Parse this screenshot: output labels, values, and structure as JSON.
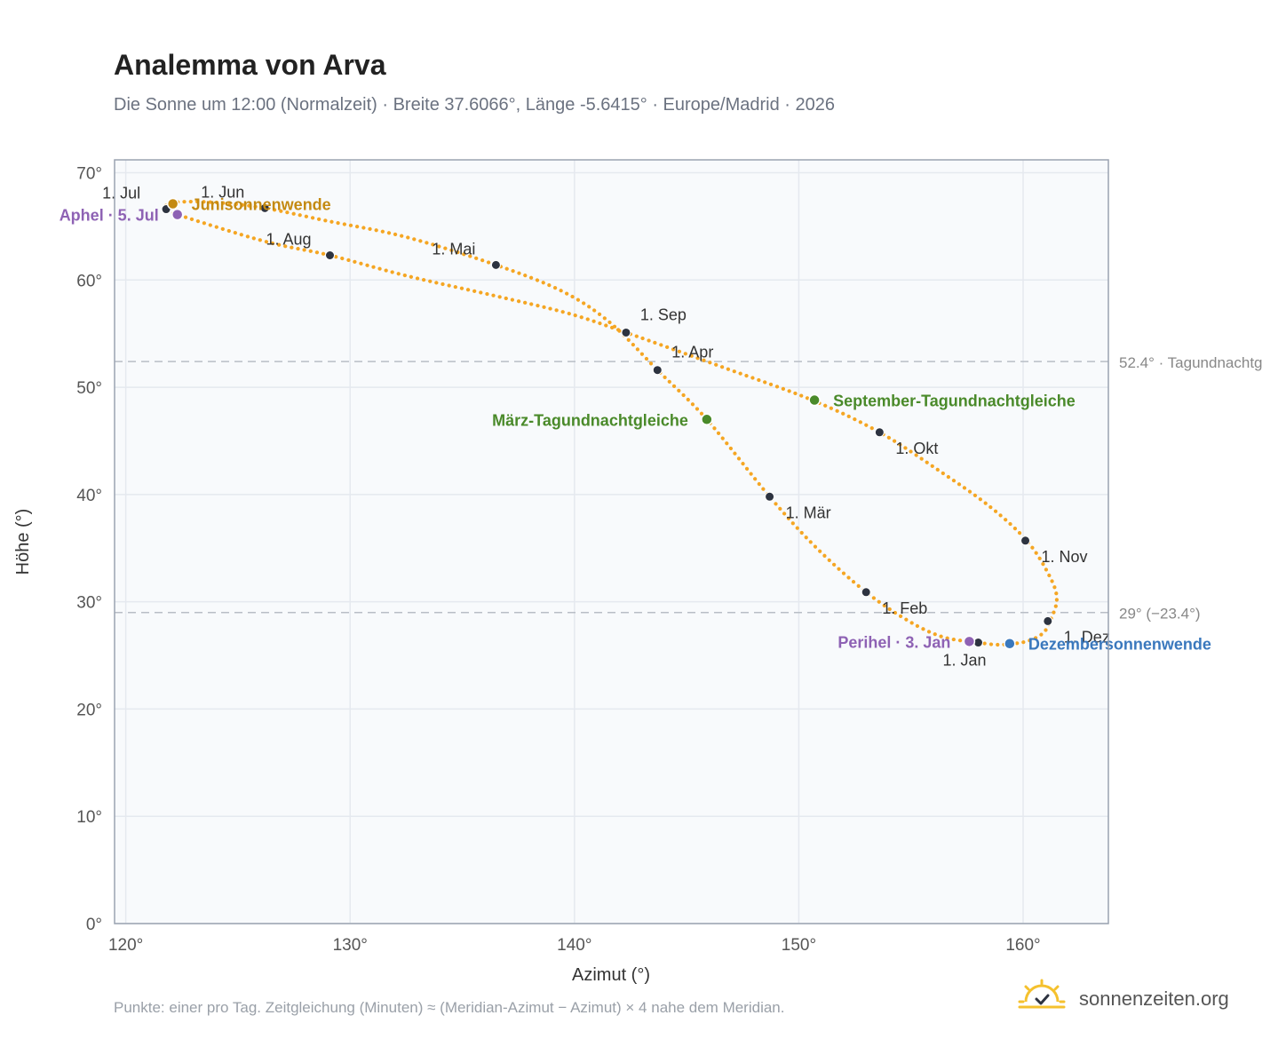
{
  "header": {
    "title": "Analemma von Arva",
    "subtitle": "Die Sonne um 12:00 (Normalzeit) · Breite 37.6066°, Länge -5.6415° · Europe/Madrid · 2026"
  },
  "footer": {
    "note": "Punkte: einer pro Tag. Zeitgleichung (Minuten) ≈ (Meridian-Azimut − Azimut) × 4 nahe dem Meridian.",
    "brand": "sonnenzeiten.org"
  },
  "colors": {
    "curve": "#f5a623",
    "month_dot": "#2d3340",
    "equinox": "#4a8a2a",
    "december_solstice": "#3a78bd",
    "june_solstice": "#c48a12",
    "perihelion_aphelion": "#8e62b4",
    "refline": "#b8bec6",
    "plot_bg": "#f8fafc",
    "grid": "#e5e9ef",
    "frame": "#9aa3b1"
  },
  "icons": {
    "brand_logo": "sun-check-icon"
  },
  "chart_data": {
    "type": "scatter",
    "title": "Analemma von Arva",
    "xlabel": "Azimut (°)",
    "ylabel": "Höhe (°)",
    "xlim": [
      119.5,
      163.8
    ],
    "ylim": [
      0,
      71.2
    ],
    "xticks": [
      120,
      130,
      140,
      150,
      160
    ],
    "yticks": [
      0,
      10,
      20,
      30,
      40,
      50,
      60,
      70
    ],
    "tick_suffix": "°",
    "grid": true,
    "legend": "none",
    "series": [
      {
        "name": "",
        "style": "dotted-line",
        "points": [
          [
            158.0,
            26.2
          ],
          [
            158.8,
            26.0
          ],
          [
            159.6,
            26.1
          ],
          [
            160.3,
            26.4
          ],
          [
            160.9,
            27.1
          ],
          [
            161.2,
            28.2
          ],
          [
            161.5,
            30.2
          ],
          [
            161.2,
            32.3
          ],
          [
            160.2,
            35.6
          ],
          [
            158.5,
            38.9
          ],
          [
            156.2,
            42.3
          ],
          [
            153.6,
            45.8
          ],
          [
            150.6,
            48.8
          ],
          [
            146.7,
            51.8
          ],
          [
            142.3,
            55.1
          ],
          [
            139.7,
            56.9
          ],
          [
            136.3,
            58.6
          ],
          [
            132.5,
            60.4
          ],
          [
            129.1,
            62.3
          ],
          [
            126.2,
            63.6
          ],
          [
            122.3,
            66.1
          ],
          [
            121.8,
            66.6
          ],
          [
            121.9,
            67.1
          ],
          [
            122.7,
            67.3
          ],
          [
            124.2,
            67.2
          ],
          [
            126.2,
            66.7
          ],
          [
            129.0,
            65.5
          ],
          [
            132.5,
            64.0
          ],
          [
            136.5,
            61.4
          ],
          [
            139.5,
            58.9
          ],
          [
            141.6,
            56.0
          ],
          [
            143.7,
            51.6
          ],
          [
            145.9,
            47.0
          ],
          [
            148.7,
            39.8
          ],
          [
            150.8,
            35.0
          ],
          [
            153.0,
            30.9
          ],
          [
            154.9,
            28.2
          ],
          [
            156.3,
            26.8
          ],
          [
            157.5,
            26.3
          ],
          [
            158.0,
            26.2
          ]
        ]
      }
    ],
    "month_markers": [
      {
        "label": "1. Jan",
        "x": 158.0,
        "y": 26.2,
        "anchor": "below"
      },
      {
        "label": "1. Feb",
        "x": 153.0,
        "y": 30.9,
        "anchor": "below-right"
      },
      {
        "label": "1. Mär",
        "x": 148.7,
        "y": 39.8,
        "anchor": "below-right"
      },
      {
        "label": "1. Apr",
        "x": 143.7,
        "y": 51.6,
        "anchor": "above-right"
      },
      {
        "label": "1. Mai",
        "x": 136.5,
        "y": 61.4,
        "anchor": "above-left"
      },
      {
        "label": "1. Jun",
        "x": 126.2,
        "y": 66.7,
        "anchor": "above-left"
      },
      {
        "label": "1. Jul",
        "x": 121.8,
        "y": 66.6,
        "anchor": "above-left"
      },
      {
        "label": "1. Aug",
        "x": 129.1,
        "y": 62.3,
        "anchor": "above-left"
      },
      {
        "label": "1. Sep",
        "x": 142.3,
        "y": 55.1,
        "anchor": "above-right"
      },
      {
        "label": "1. Okt",
        "x": 153.6,
        "y": 45.8,
        "anchor": "below-right"
      },
      {
        "label": "1. Nov",
        "x": 160.1,
        "y": 35.7,
        "anchor": "below-right"
      },
      {
        "label": "1. Dez",
        "x": 161.1,
        "y": 28.2,
        "anchor": "below-right"
      }
    ],
    "events": [
      {
        "label": "Junisonnenwende",
        "x": 122.1,
        "y": 67.1,
        "color_key": "june_solstice",
        "anchor": "right"
      },
      {
        "label": "Aphel · 5. Jul",
        "x": 122.3,
        "y": 66.1,
        "color_key": "perihelion_aphelion",
        "anchor": "left"
      },
      {
        "label": "März-Tagundnachtgleiche",
        "x": 145.9,
        "y": 47.0,
        "color_key": "equinox",
        "anchor": "left"
      },
      {
        "label": "September-Tagundnachtgleiche",
        "x": 150.7,
        "y": 48.8,
        "color_key": "equinox",
        "anchor": "right"
      },
      {
        "label": "Perihel · 3. Jan",
        "x": 157.6,
        "y": 26.3,
        "color_key": "perihelion_aphelion",
        "anchor": "left"
      },
      {
        "label": "Dezembersonnenwende",
        "x": 159.4,
        "y": 26.1,
        "color_key": "december_solstice",
        "anchor": "right"
      }
    ],
    "reference_lines": [
      {
        "y": 52.4,
        "label": "52.4° · Tagundnachtg"
      },
      {
        "y": 29.0,
        "label": "29° (−23.4°)"
      }
    ]
  }
}
